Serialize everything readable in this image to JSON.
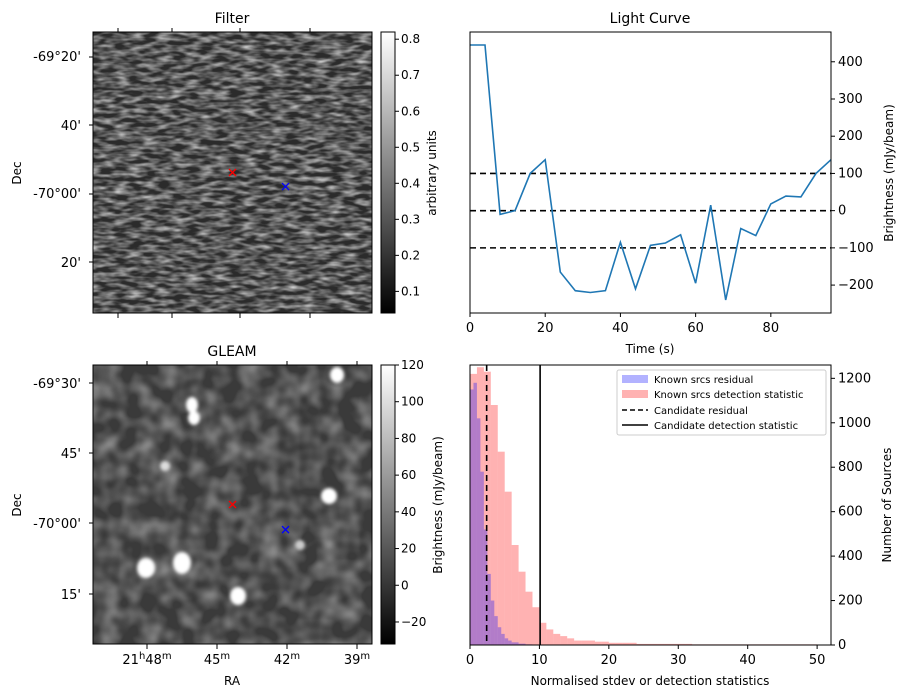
{
  "panels": {
    "filter": {
      "title": "Filter",
      "ylabel": "Dec",
      "yticks": [
        "-69°20'",
        "40'",
        "-70°00'",
        "20'"
      ],
      "colorbar": {
        "label": "arbitrary units",
        "range": [
          0.04,
          0.82
        ],
        "ticks": [
          "0.1",
          "0.2",
          "0.3",
          "0.4",
          "0.5",
          "0.6",
          "0.7",
          "0.8"
        ],
        "tick_values": [
          0.1,
          0.2,
          0.3,
          0.4,
          0.5,
          0.6,
          0.7,
          0.8
        ]
      },
      "markers": [
        {
          "name": "red-x",
          "color": "#ff0000",
          "fx": 0.5,
          "fy": 0.5
        },
        {
          "name": "blue-x",
          "color": "#0000ff",
          "fx": 0.69,
          "fy": 0.55
        }
      ]
    },
    "gleam": {
      "title": "GLEAM",
      "ylabel": "Dec",
      "xlabel": "RA",
      "yticks": [
        "-69°30'",
        "45'",
        "-70°00'",
        "15'"
      ],
      "xticks": [
        {
          "main": "21",
          "h": "h",
          "rest": "48",
          "m": "m"
        },
        {
          "main": "45",
          "m": "m"
        },
        {
          "main": "42",
          "m": "m"
        },
        {
          "main": "39",
          "m": "m"
        }
      ],
      "colorbar": {
        "label": "Brightness (mJy/beam)",
        "range": [
          -32,
          120
        ],
        "ticks": [
          "−20",
          "0",
          "20",
          "40",
          "60",
          "80",
          "100",
          "120"
        ],
        "tick_values": [
          -20,
          0,
          20,
          40,
          60,
          80,
          100,
          120
        ]
      },
      "markers": [
        {
          "name": "red-x",
          "color": "#ff0000",
          "fx": 0.5,
          "fy": 0.5
        },
        {
          "name": "blue-x",
          "color": "#0000ff",
          "fx": 0.69,
          "fy": 0.59
        }
      ]
    }
  },
  "chart_data": [
    {
      "type": "line",
      "title": "Light Curve",
      "xlabel": "Time (s)",
      "ylabel": "Brightness (mJy/beam)",
      "xlim": [
        0,
        96
      ],
      "ylim": [
        -275,
        480
      ],
      "xticks": [
        0,
        20,
        40,
        60,
        80
      ],
      "yticks": [
        -200,
        -100,
        0,
        100,
        200,
        300,
        400
      ],
      "ytick_labels": [
        "−200",
        "−100",
        "0",
        "100",
        "200",
        "300",
        "400"
      ],
      "hlines": [
        100,
        0,
        -100
      ],
      "hline_style": "dashed",
      "color": "#1f77b4",
      "x": [
        0,
        4,
        8,
        12,
        16,
        20,
        24,
        28,
        32,
        36,
        40,
        44,
        48,
        52,
        56,
        60,
        64,
        68,
        72,
        76,
        80,
        84,
        88,
        92,
        96
      ],
      "y": [
        445,
        445,
        -10,
        0,
        100,
        137,
        -165,
        -215,
        -220,
        -215,
        -85,
        -210,
        -93,
        -87,
        -65,
        -195,
        15,
        -240,
        -48,
        -67,
        18,
        39,
        37,
        100,
        137
      ]
    },
    {
      "type": "bar",
      "subtype": "histogram",
      "xlabel": "Normalised stdev or detection statistics",
      "ylabel": "Number of Sources",
      "xlim": [
        0,
        52
      ],
      "ylim": [
        0,
        1260
      ],
      "xticks": [
        0,
        10,
        20,
        30,
        40,
        50
      ],
      "yticks": [
        0,
        200,
        400,
        600,
        800,
        1000,
        1200
      ],
      "legend_loc": "upper right",
      "series": [
        {
          "name": "Known srcs residual",
          "color": "#0000ff",
          "alpha": 0.3,
          "bin_edges": [
            0,
            0.5,
            1,
            1.5,
            2,
            2.5,
            3,
            3.5,
            4,
            4.5,
            5,
            5.5,
            6,
            7,
            8,
            9
          ],
          "counts": [
            1150,
            1180,
            1020,
            780,
            520,
            320,
            200,
            130,
            80,
            50,
            30,
            20,
            12,
            6,
            3
          ]
        },
        {
          "name": "Known srcs detection statistic",
          "color": "#ff0000",
          "alpha": 0.3,
          "bin_edges": [
            0,
            1,
            2,
            3,
            4,
            5,
            6,
            7,
            8,
            9,
            10,
            11,
            12,
            13,
            14,
            15,
            16,
            17,
            18,
            19,
            20,
            21,
            22,
            23,
            24,
            25,
            26,
            27,
            28,
            29,
            30,
            31,
            32,
            33,
            34,
            35,
            36,
            37,
            38,
            39,
            40,
            41,
            42,
            43,
            44,
            45,
            46,
            47,
            48,
            49,
            50
          ],
          "counts": [
            1220,
            1250,
            1230,
            1080,
            870,
            690,
            450,
            330,
            240,
            170,
            100,
            70,
            50,
            40,
            30,
            20,
            20,
            20,
            15,
            15,
            10,
            10,
            10,
            10,
            5,
            5,
            5,
            5,
            5,
            5,
            5,
            5,
            3,
            3,
            3,
            3,
            3,
            3,
            3,
            3,
            3,
            3,
            3,
            3,
            3,
            3,
            3,
            3,
            3,
            3
          ]
        },
        {
          "name": "Candidate residual",
          "style": "dashed",
          "color": "#000000",
          "x": 2.4
        },
        {
          "name": "Candidate detection statistic",
          "style": "solid",
          "color": "#000000",
          "x": 10.1
        }
      ]
    }
  ]
}
